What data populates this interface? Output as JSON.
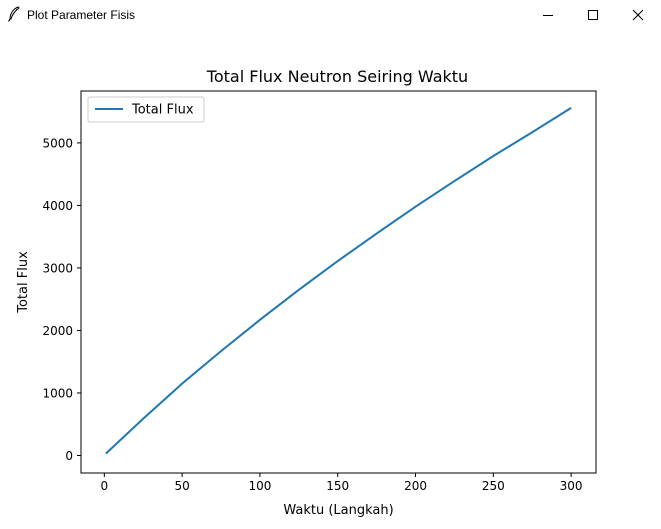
{
  "window": {
    "title": "Plot Parameter Fisis",
    "icons": {
      "app": "feather-icon",
      "minimize": "minimize-icon",
      "maximize": "maximize-icon",
      "close": "close-icon"
    }
  },
  "chart_data": {
    "type": "line",
    "title": "Total Flux Neutron Seiring Waktu",
    "xlabel": "Waktu (Langkah)",
    "ylabel": "Total Flux",
    "xlim": [
      -15,
      316
    ],
    "ylim": [
      -280,
      5830
    ],
    "xticks": [
      0,
      50,
      100,
      150,
      200,
      250,
      300
    ],
    "yticks": [
      0,
      1000,
      2000,
      3000,
      4000,
      5000
    ],
    "grid": false,
    "legend": "top-left",
    "series": [
      {
        "name": "Total Flux",
        "color": "#1f77b4",
        "x": [
          1,
          25,
          50,
          75,
          100,
          125,
          150,
          175,
          200,
          225,
          250,
          275,
          300
        ],
        "y": [
          30,
          590,
          1150,
          1670,
          2170,
          2650,
          3110,
          3550,
          3980,
          4390,
          4790,
          5170,
          5560
        ]
      }
    ]
  }
}
